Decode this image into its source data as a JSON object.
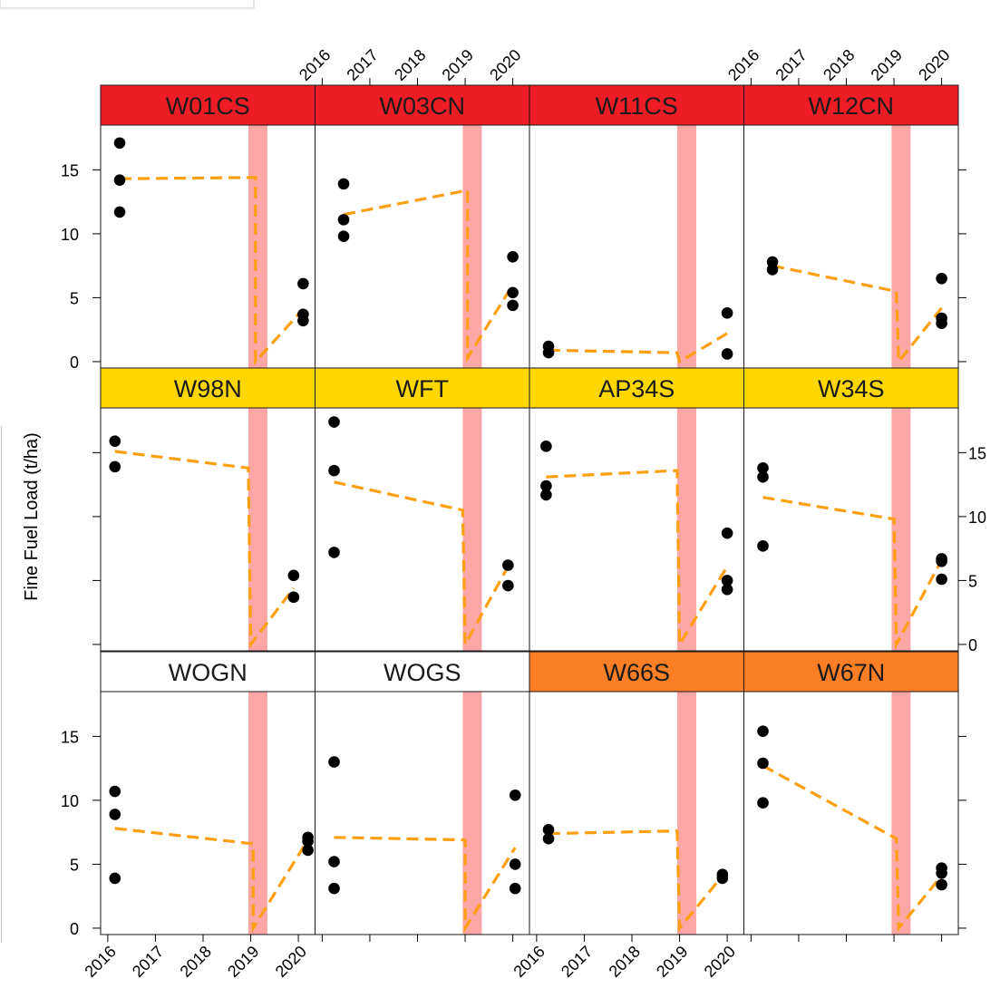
{
  "chart_data": {
    "type": "scatter",
    "ylabel": "Fine Fuel Load (t/ha)",
    "ylim": [
      -0.5,
      18.5
    ],
    "xlim": [
      2015.85,
      2020.35
    ],
    "x_ticks": [
      2016,
      2017,
      2018,
      2019,
      2020
    ],
    "x_tick_labels": [
      "2016",
      "2017",
      "2018",
      "2019",
      "2020"
    ],
    "y_ticks": [
      0,
      5,
      10,
      15
    ],
    "y_tick_labels": [
      "0",
      "5",
      "10",
      "15"
    ],
    "grid": false,
    "layout": {
      "rows": 3,
      "cols": 4
    },
    "colors": {
      "red": "#ee1c25",
      "yellow": "#ffd700",
      "white": "#ffffff",
      "orange": "#fc7f26",
      "band": "#fca6a6",
      "trend": "#ff9f0f",
      "point": "#000000"
    },
    "band_x": [
      2018.95,
      2019.35
    ],
    "panels": [
      {
        "name": "W01CS",
        "strip": "red",
        "points": [
          [
            2016.25,
            17.1
          ],
          [
            2016.25,
            14.2
          ],
          [
            2016.25,
            11.7
          ],
          [
            2020.1,
            6.1
          ],
          [
            2020.1,
            3.7
          ],
          [
            2020.1,
            3.2
          ]
        ],
        "trend": [
          [
            2016.25,
            14.3
          ],
          [
            2019.1,
            14.4
          ],
          [
            2019.1,
            0
          ],
          [
            2020.1,
            4.1
          ]
        ]
      },
      {
        "name": "W03CN",
        "strip": "red",
        "points": [
          [
            2016.45,
            13.9
          ],
          [
            2016.45,
            11.1
          ],
          [
            2016.45,
            9.8
          ],
          [
            2020.0,
            8.2
          ],
          [
            2020.0,
            5.4
          ],
          [
            2020.0,
            4.4
          ]
        ],
        "trend": [
          [
            2016.45,
            11.5
          ],
          [
            2019.05,
            13.4
          ],
          [
            2019.05,
            0.3
          ],
          [
            2020.0,
            6.0
          ]
        ]
      },
      {
        "name": "W11CS",
        "strip": "red",
        "points": [
          [
            2016.25,
            1.2
          ],
          [
            2016.25,
            0.7
          ],
          [
            2020.0,
            3.8
          ],
          [
            2020.0,
            0.6
          ]
        ],
        "trend": [
          [
            2016.25,
            0.9
          ],
          [
            2018.95,
            0.7
          ],
          [
            2019.0,
            0
          ],
          [
            2020.0,
            2.2
          ]
        ]
      },
      {
        "name": "W12CN",
        "strip": "red",
        "points": [
          [
            2016.45,
            7.8
          ],
          [
            2016.45,
            7.2
          ],
          [
            2020.0,
            6.5
          ],
          [
            2020.0,
            3.4
          ],
          [
            2020.0,
            3.0
          ]
        ],
        "trend": [
          [
            2016.45,
            7.5
          ],
          [
            2019.05,
            5.5
          ],
          [
            2019.1,
            0
          ],
          [
            2020.0,
            4.2
          ]
        ]
      },
      {
        "name": "W98N",
        "strip": "yellow",
        "points": [
          [
            2016.15,
            15.9
          ],
          [
            2016.15,
            13.9
          ],
          [
            2019.9,
            5.4
          ],
          [
            2019.9,
            3.7
          ]
        ],
        "trend": [
          [
            2016.15,
            15.1
          ],
          [
            2018.95,
            13.8
          ],
          [
            2019.0,
            0
          ],
          [
            2019.9,
            4.4
          ]
        ]
      },
      {
        "name": "WFT",
        "strip": "yellow",
        "points": [
          [
            2016.25,
            17.4
          ],
          [
            2016.25,
            13.6
          ],
          [
            2016.25,
            7.2
          ],
          [
            2019.9,
            6.2
          ],
          [
            2019.9,
            4.6
          ]
        ],
        "trend": [
          [
            2016.25,
            12.7
          ],
          [
            2018.95,
            10.5
          ],
          [
            2019.0,
            0
          ],
          [
            2019.9,
            6.1
          ]
        ]
      },
      {
        "name": "AP34S",
        "strip": "yellow",
        "points": [
          [
            2016.2,
            15.5
          ],
          [
            2016.2,
            12.4
          ],
          [
            2016.2,
            11.7
          ],
          [
            2020.0,
            8.7
          ],
          [
            2020.0,
            5.0
          ],
          [
            2020.0,
            4.3
          ]
        ],
        "trend": [
          [
            2016.2,
            13.1
          ],
          [
            2018.95,
            13.6
          ],
          [
            2019.0,
            0
          ],
          [
            2020.0,
            6.1
          ]
        ]
      },
      {
        "name": "W34S",
        "strip": "yellow",
        "points": [
          [
            2016.25,
            13.8
          ],
          [
            2016.25,
            13.1
          ],
          [
            2016.25,
            7.7
          ],
          [
            2020.0,
            6.7
          ],
          [
            2020.0,
            6.5
          ],
          [
            2020.0,
            5.1
          ]
        ],
        "trend": [
          [
            2016.25,
            11.5
          ],
          [
            2019.0,
            9.8
          ],
          [
            2019.05,
            0
          ],
          [
            2020.0,
            6.6
          ]
        ]
      },
      {
        "name": "WOGN",
        "strip": "white",
        "points": [
          [
            2016.15,
            10.7
          ],
          [
            2016.15,
            8.9
          ],
          [
            2016.15,
            3.9
          ],
          [
            2020.2,
            7.1
          ],
          [
            2020.2,
            6.8
          ],
          [
            2020.2,
            6.1
          ]
        ],
        "trend": [
          [
            2016.15,
            7.8
          ],
          [
            2019.05,
            6.6
          ],
          [
            2019.05,
            0
          ],
          [
            2020.2,
            6.9
          ]
        ]
      },
      {
        "name": "WOGS",
        "strip": "white",
        "points": [
          [
            2016.25,
            13.0
          ],
          [
            2016.25,
            5.2
          ],
          [
            2016.25,
            3.1
          ],
          [
            2020.05,
            10.4
          ],
          [
            2020.05,
            5.0
          ],
          [
            2020.05,
            3.1
          ]
        ],
        "trend": [
          [
            2016.25,
            7.1
          ],
          [
            2019.0,
            6.9
          ],
          [
            2019.0,
            0
          ],
          [
            2020.05,
            6.3
          ]
        ]
      },
      {
        "name": "W66S",
        "strip": "orange",
        "points": [
          [
            2016.25,
            7.7
          ],
          [
            2016.25,
            7.0
          ],
          [
            2019.9,
            4.2
          ],
          [
            2019.9,
            3.9
          ]
        ],
        "trend": [
          [
            2016.25,
            7.4
          ],
          [
            2018.95,
            7.6
          ],
          [
            2019.0,
            0
          ],
          [
            2019.9,
            4.1
          ]
        ]
      },
      {
        "name": "W67N",
        "strip": "orange",
        "points": [
          [
            2016.25,
            15.4
          ],
          [
            2016.25,
            12.9
          ],
          [
            2016.25,
            9.8
          ],
          [
            2020.0,
            4.7
          ],
          [
            2020.0,
            4.3
          ],
          [
            2020.0,
            3.4
          ]
        ],
        "trend": [
          [
            2016.25,
            12.7
          ],
          [
            2019.05,
            7.0
          ],
          [
            2019.1,
            0
          ],
          [
            2020.0,
            4.1
          ]
        ]
      }
    ]
  }
}
